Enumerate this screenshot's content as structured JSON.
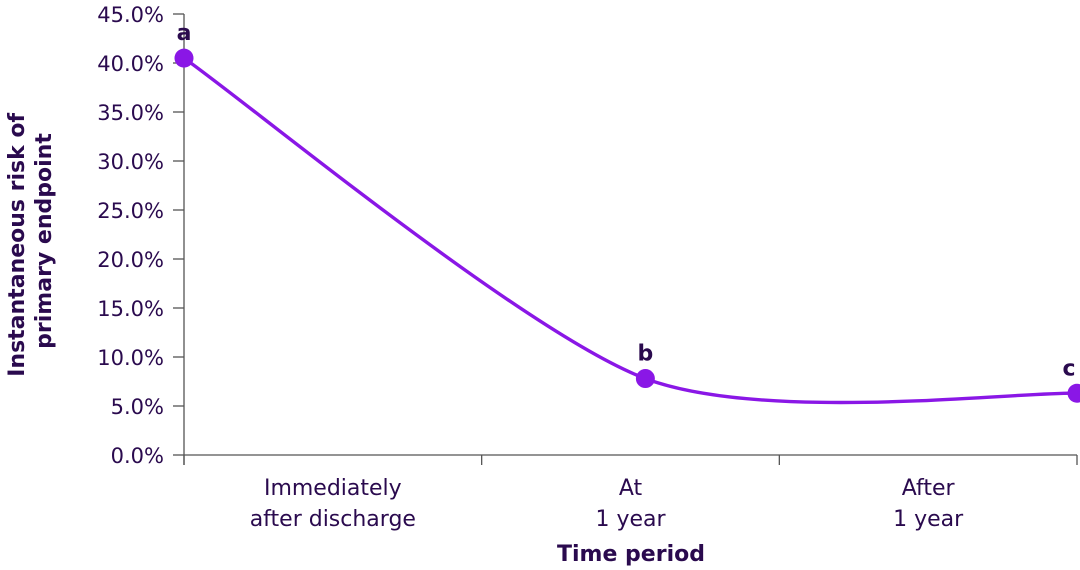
{
  "chart_data": {
    "type": "line",
    "categories": [
      "Immediately after discharge",
      "At 1 year",
      "After 1 year"
    ],
    "category_lines": [
      [
        "Immediately",
        "after discharge"
      ],
      [
        "At",
        "1 year"
      ],
      [
        "After",
        "1 year"
      ]
    ],
    "points": [
      {
        "x": 0.0,
        "y": 40.5,
        "label": "a"
      },
      {
        "x": 1.55,
        "y": 7.8,
        "label": "b"
      },
      {
        "x": 3.0,
        "y": 6.3,
        "label": "c"
      }
    ],
    "ylim": [
      0,
      45
    ],
    "y_ticks": [
      "0.0%",
      "5.0%",
      "10.0%",
      "15.0%",
      "20.0%",
      "25.0%",
      "30.0%",
      "35.0%",
      "40.0%",
      "45.0%"
    ],
    "ylabel_lines": [
      "Instantaneous risk of",
      "primary endpoint"
    ],
    "xlabel": "Time period",
    "line_color": "#8a17e6",
    "text_color": "#2a0a4e",
    "grid": false,
    "legend": "none"
  }
}
